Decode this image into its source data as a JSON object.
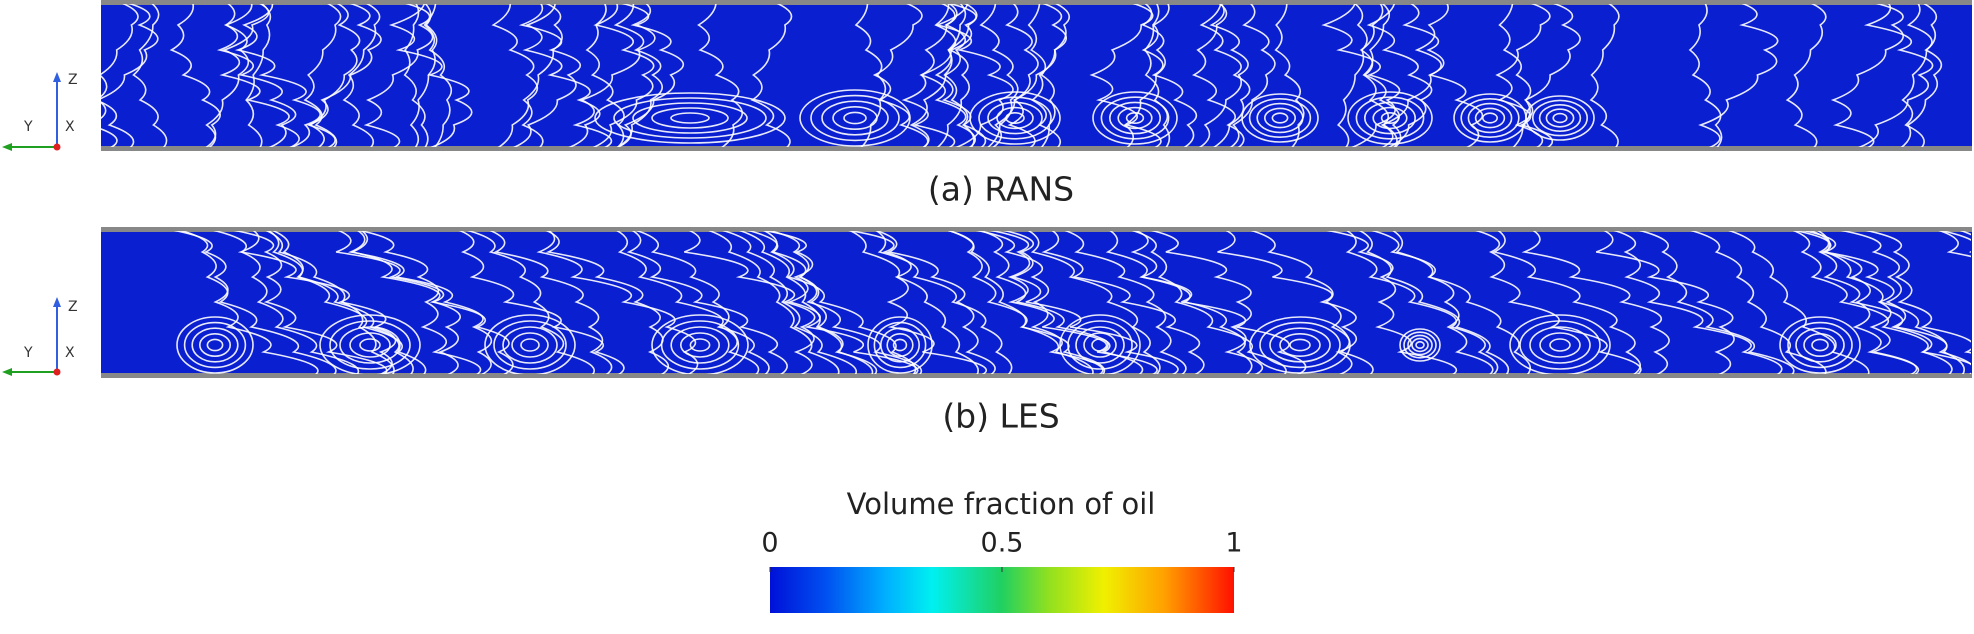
{
  "panels": [
    {
      "caption": "(a) RANS",
      "axes": {
        "z": "Z",
        "y": "Y",
        "x": "X"
      }
    },
    {
      "caption": "(b) LES",
      "axes": {
        "z": "Z",
        "y": "Y",
        "x": "X"
      }
    }
  ],
  "colorbar": {
    "title": "Volume fraction of oil",
    "range": [
      0,
      1
    ],
    "ticks": [
      0,
      0.5,
      1
    ]
  }
}
